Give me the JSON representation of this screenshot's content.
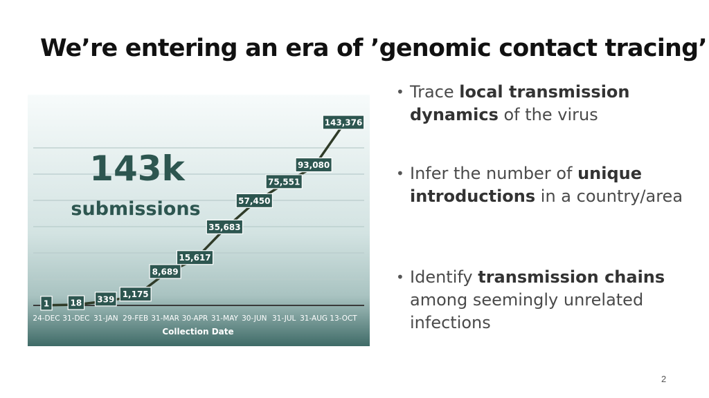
{
  "slide": {
    "title": "We’re entering an era of ’genomic contact tracing’",
    "page_number": "2"
  },
  "bullets": [
    {
      "prefix": "Trace ",
      "bold": "local transmission dynamics",
      "suffix": " of the virus"
    },
    {
      "prefix": "Infer the number of ",
      "bold": "unique introductions",
      "suffix": " in a country/area"
    },
    {
      "prefix": "Identify ",
      "bold": "transmission chains",
      "suffix": " among seemingly unrelated infections"
    }
  ],
  "chart_data": {
    "type": "line",
    "title": "143k",
    "subtitle": "submissions",
    "xlabel": "Collection Date",
    "ylabel": "",
    "categories": [
      "24-DEC",
      "31-DEC",
      "31-JAN",
      "29-FEB",
      "31-MAR",
      "30-APR",
      "31-MAY",
      "30-JUN",
      "31-JUL",
      "31-AUG",
      "13-OCT"
    ],
    "data_labels": [
      "1",
      "18",
      "339",
      "1,175",
      "8,689",
      "15,617",
      "35,683",
      "57,450",
      "75,551",
      "93,080",
      "143,376"
    ],
    "values": [
      1,
      18,
      339,
      1175,
      8689,
      15617,
      35683,
      57450,
      75551,
      93080,
      143376
    ],
    "y_axis": "cumulative submissions (non-linear display scale)",
    "grid": true,
    "line_color": "#2f3b28",
    "label_bg_color": "#2d5650",
    "label_text_color": "#ffffff",
    "title_color": "#2d5650",
    "background_gradient": [
      "#f6fafa",
      "#cfe0df",
      "#3d6a66"
    ]
  }
}
